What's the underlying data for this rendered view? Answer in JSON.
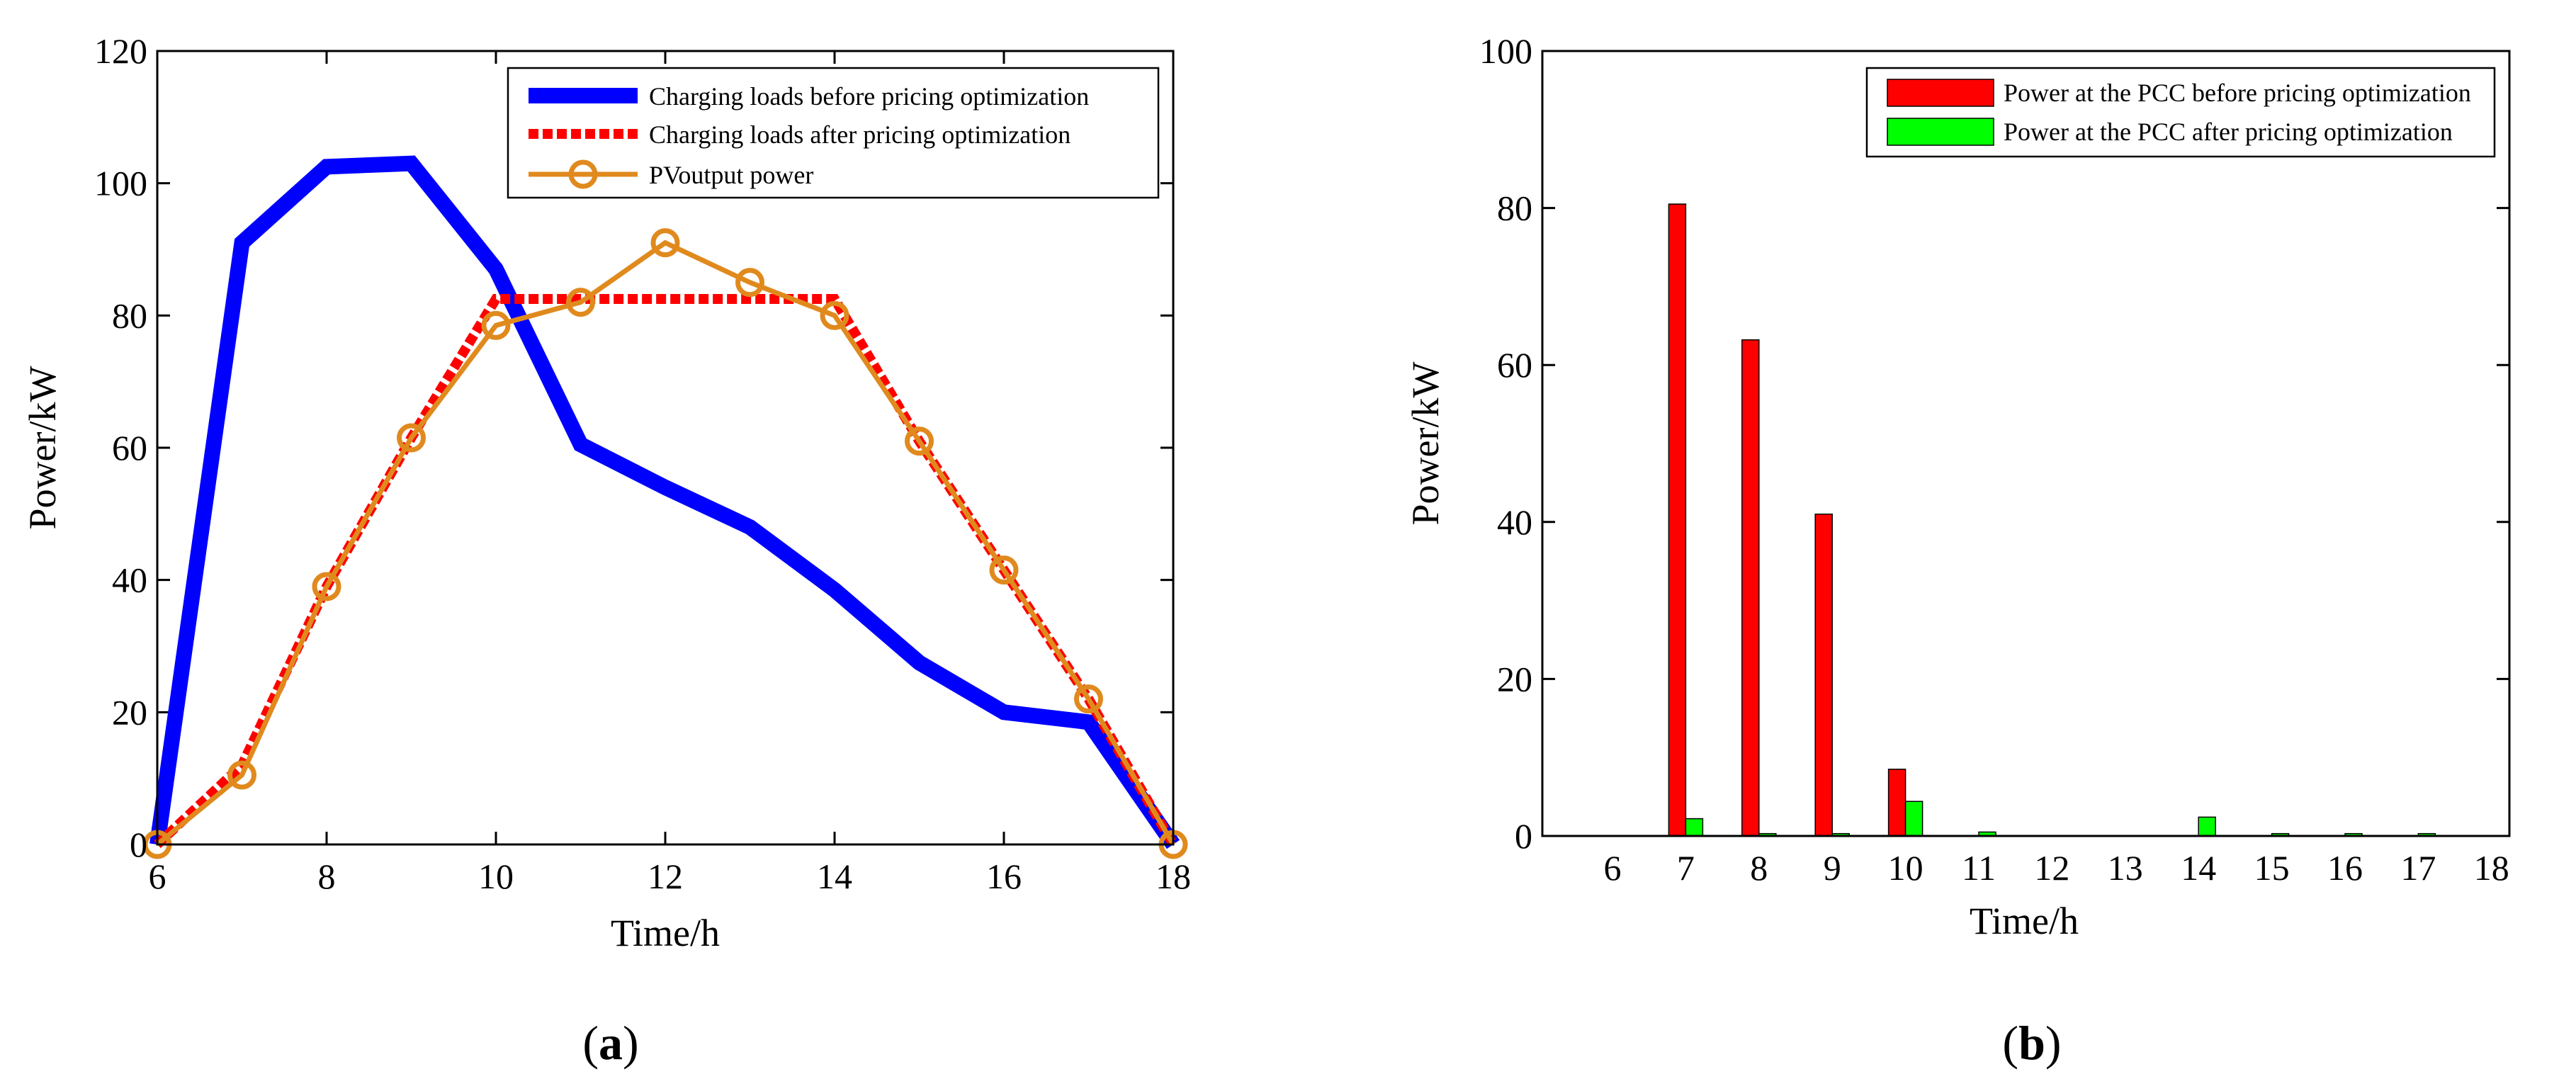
{
  "chart_data": [
    {
      "type": "line",
      "panel_label": "a",
      "xlabel": "Time/h",
      "ylabel": "Power/kW",
      "xlim": [
        6,
        18
      ],
      "ylim": [
        0,
        120
      ],
      "xticks": [
        6,
        8,
        10,
        12,
        14,
        16,
        18
      ],
      "yticks": [
        0,
        20,
        40,
        60,
        80,
        100,
        120
      ],
      "x": [
        6,
        7,
        8,
        9,
        10,
        11,
        12,
        13,
        14,
        15,
        16,
        17,
        18
      ],
      "series": [
        {
          "name": "Charging loads before pricing optimization",
          "color": "#0000ff",
          "values": [
            0,
            91,
            102.5,
            103,
            87,
            60.5,
            54,
            48,
            38.5,
            27.5,
            20,
            18.5,
            0
          ]
        },
        {
          "name": "Charging loads after pricing optimization",
          "color": "#ff0000",
          "values": [
            0,
            12,
            39,
            61.5,
            82.5,
            82.5,
            82.5,
            82.5,
            82.5,
            61,
            41.5,
            22,
            0
          ]
        },
        {
          "name": "PV output power",
          "color": "#e08a1e",
          "values": [
            0,
            10.5,
            39,
            61.5,
            78.5,
            82,
            91,
            85,
            80,
            61,
            41.5,
            22,
            0
          ]
        }
      ],
      "legend_labels": [
        "Charging loads before pricing optimization",
        "Charging loads after pricing optimization",
        "PVoutput power"
      ],
      "legend_position": "top-right"
    },
    {
      "type": "bar",
      "panel_label": "b",
      "xlabel": "Time/h",
      "ylabel": "Power/kW",
      "ylim": [
        0,
        100
      ],
      "yticks": [
        0,
        20,
        40,
        60,
        80,
        100
      ],
      "categories": [
        "6",
        "7",
        "8",
        "9",
        "10",
        "11",
        "12",
        "13",
        "14",
        "15",
        "16",
        "17",
        "18"
      ],
      "series": [
        {
          "name": "Power at the PCC before pricing optimization",
          "color": "#ff0000",
          "values": [
            0,
            80.5,
            63.2,
            41,
            8.5,
            0,
            0,
            0,
            0,
            0,
            0,
            0,
            0
          ]
        },
        {
          "name": "Power at the PCC after pricing optimization",
          "color": "#00ff00",
          "values": [
            0,
            2.2,
            0.3,
            0.3,
            4.4,
            0.5,
            0,
            0,
            2.4,
            0.3,
            0.3,
            0.3,
            0
          ]
        }
      ],
      "legend_position": "top-right"
    }
  ]
}
